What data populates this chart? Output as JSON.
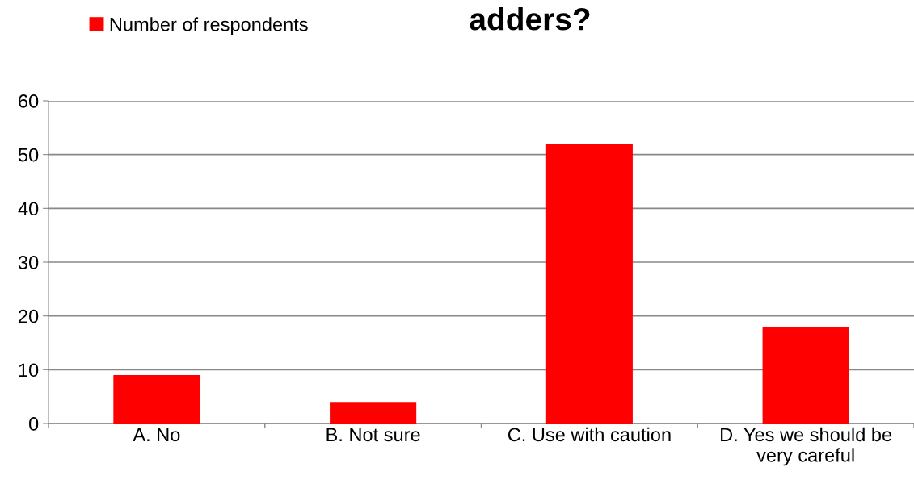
{
  "chart_data": {
    "type": "bar",
    "title": "adders?",
    "categories": [
      "A. No",
      "B. Not sure",
      "C. Use with caution",
      "D. Yes we should be\nvery careful"
    ],
    "series": [
      {
        "name": "Number of respondents",
        "color": "#ff0000",
        "values": [
          9,
          4,
          52,
          18
        ]
      }
    ],
    "ylim": [
      0,
      60
    ],
    "yticks": [
      0,
      10,
      20,
      30,
      40,
      50,
      60
    ],
    "grid": "y",
    "legend": "top left"
  }
}
